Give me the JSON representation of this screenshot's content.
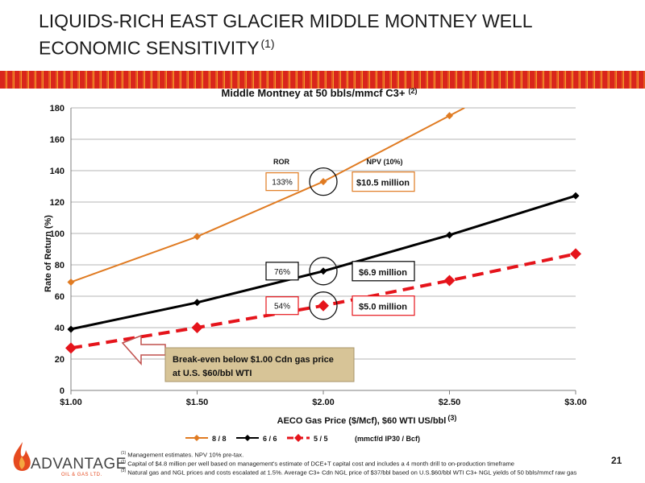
{
  "slide": {
    "title": "LIQUIDS-RICH EAST GLACIER MIDDLE MONTNEY WELL ECONOMIC SENSITIVITY",
    "title_note": "(1)",
    "page_number": "21",
    "logo_text": "ADVANTAGE",
    "logo_subtext": "OIL & GAS LTD."
  },
  "chart_data": {
    "type": "line",
    "title": "Middle Montney at 50 bbls/mmcf C3+",
    "title_note": "(2)",
    "xlabel": "AECO Gas Price ($/Mcf), $60 WTI US/bbl",
    "xlabel_note": "(3)",
    "ylabel": "Rate of Return (%)",
    "x": [
      1.0,
      1.5,
      2.0,
      2.5,
      3.0
    ],
    "x_tick_labels": [
      "$1.00",
      "$1.50",
      "$2.00",
      "$2.50",
      "$3.00"
    ],
    "y_ticks": [
      "0",
      "20",
      "40",
      "60",
      "80",
      "100",
      "120",
      "140",
      "160",
      "180"
    ],
    "xlim": [
      1.0,
      3.0
    ],
    "ylim": [
      0,
      180
    ],
    "grid": true,
    "legend_position": "bottom",
    "legend_note": "(mmcf/d IP30 / Bcf)",
    "series": [
      {
        "name": "8 / 8",
        "color": "#e07b22",
        "style": "solid",
        "marker": "diamond",
        "x": [
          1.0,
          1.5,
          2.0,
          2.5
        ],
        "values": [
          69,
          98,
          133,
          175
        ]
      },
      {
        "name": "6 / 6",
        "color": "#000000",
        "style": "solid",
        "marker": "diamond",
        "x": [
          1.0,
          1.5,
          2.0,
          2.5,
          3.0
        ],
        "values": [
          39,
          56,
          76,
          99,
          124
        ]
      },
      {
        "name": "5 / 5",
        "color": "#e5141b",
        "style": "dashed",
        "marker": "diamond",
        "x": [
          1.0,
          1.5,
          2.0,
          2.5,
          3.0
        ],
        "values": [
          27,
          40,
          54,
          70,
          87
        ]
      }
    ],
    "annotations": {
      "ror_header": "ROR",
      "npv_header": "NPV (10%)",
      "rows": [
        {
          "series": "8 / 8",
          "ror": "133%",
          "npv": "$10.5 million",
          "y": 133
        },
        {
          "series": "6 / 6",
          "ror": "76%",
          "npv": "$6.9 million",
          "y": 76
        },
        {
          "series": "5 / 5",
          "ror": "54%",
          "npv": "$5.0 million",
          "y": 54
        }
      ],
      "callout": [
        "Break-even below $1.00 Cdn gas price",
        "at U.S. $60/bbl WTI"
      ]
    }
  },
  "footnotes": [
    {
      "mark": "(1)",
      "text": "Management estimates. NPV 10% pre-tax."
    },
    {
      "mark": "(2)",
      "text": "Capital of $4.8 million per well based on management's estimate of DCE+T capital cost and includes a 4 month drill to on-production timeframe"
    },
    {
      "mark": "(3)",
      "text": "Natural gas and NGL prices and costs escalated at 1.5%. Average C3+ Cdn NGL price of $37/bbl based on U.S.$60/bbl WTI C3+ NGL yields of 50 bbls/mmcf raw gas"
    }
  ]
}
